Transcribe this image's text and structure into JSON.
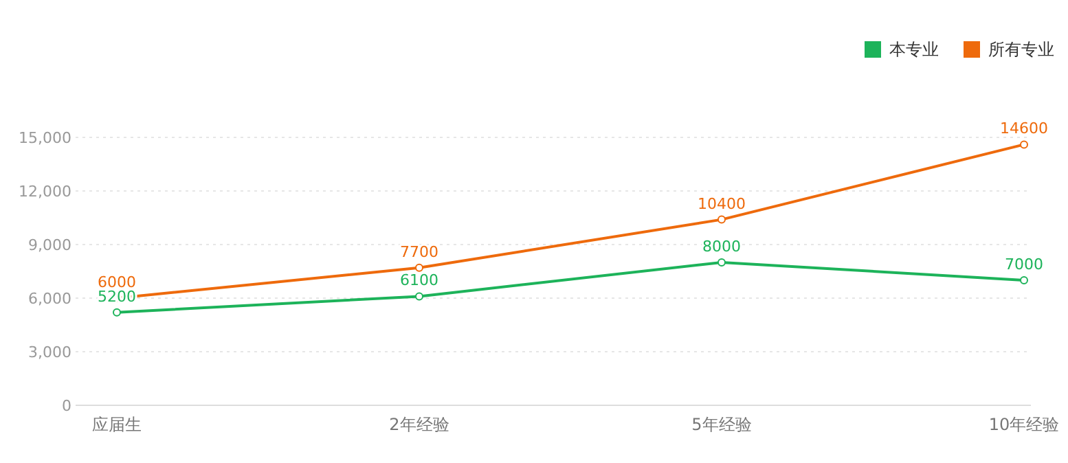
{
  "chart_data": {
    "type": "line",
    "categories": [
      "应届生",
      "2年经验",
      "5年经验",
      "10年经验"
    ],
    "series": [
      {
        "name": "本专业",
        "color": "#1db35a",
        "values": [
          5200,
          6100,
          8000,
          7000
        ]
      },
      {
        "name": "所有专业",
        "color": "#ee6a0c",
        "values": [
          6000,
          7700,
          10400,
          14600
        ]
      }
    ],
    "ylim": [
      0,
      15000
    ],
    "yticks": [
      {
        "value": 0,
        "label": "0"
      },
      {
        "value": 3000,
        "label": "3,000"
      },
      {
        "value": 6000,
        "label": "6,000"
      },
      {
        "value": 9000,
        "label": "9,000"
      },
      {
        "value": 12000,
        "label": "12,000"
      },
      {
        "value": 15000,
        "label": "15,000"
      }
    ],
    "grid": "y",
    "legend": "top right",
    "marker": "circle",
    "line_style": "solid",
    "data_labels": true
  }
}
